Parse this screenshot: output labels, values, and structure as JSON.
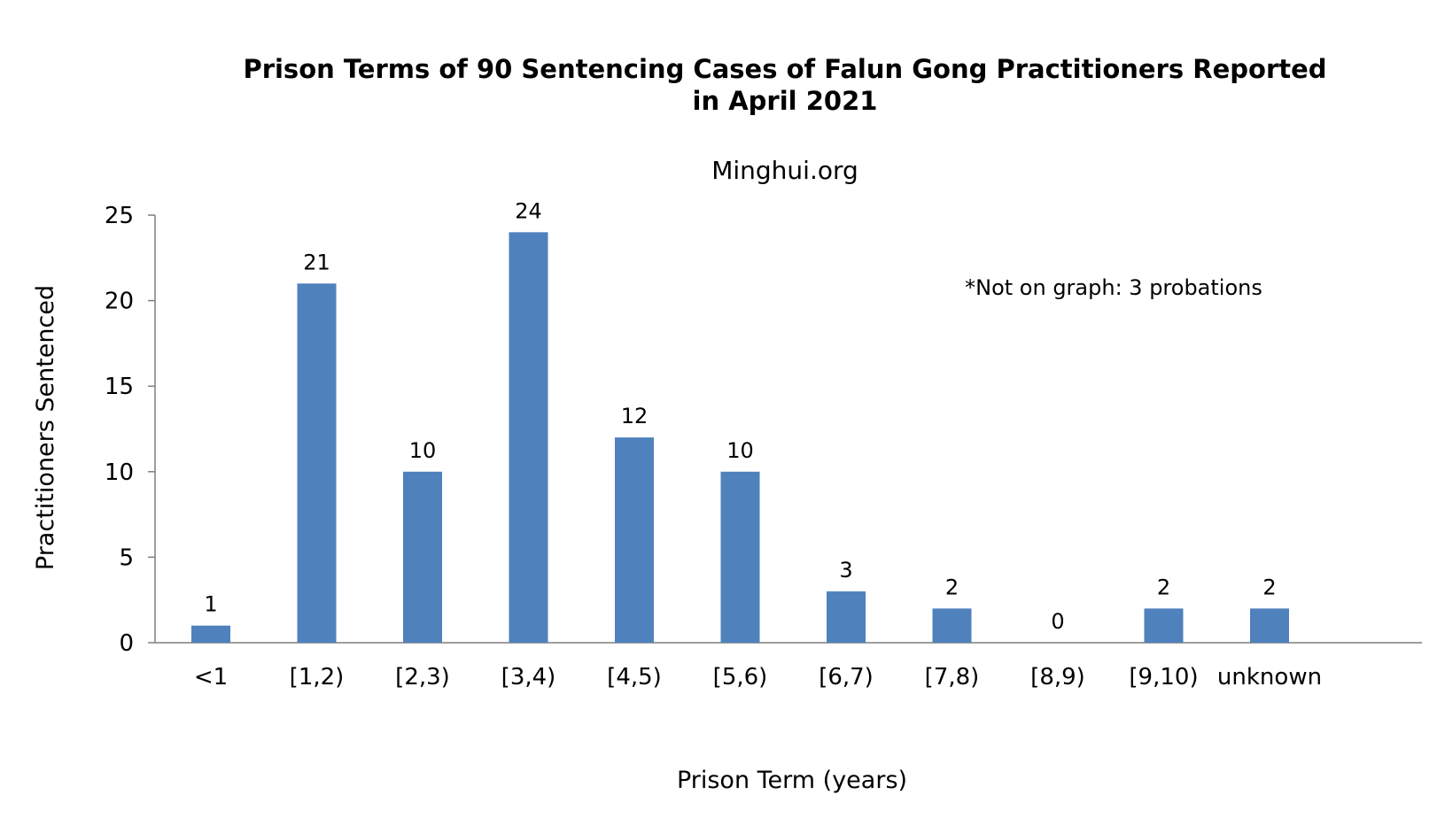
{
  "chart_data": {
    "type": "bar",
    "title": "Prison Terms of 90 Sentencing Cases of Falun Gong Practitioners Reported",
    "title_line2": "in April 2021",
    "subtitle": "Minghui.org",
    "note": "*Not on graph: 3 probations",
    "xlabel": "Prison Term (years)",
    "ylabel": "Practitioners Sentenced",
    "categories": [
      "<1",
      "[1,2)",
      "[2,3)",
      "[3,4)",
      "[4,5)",
      "[5,6)",
      "[6,7)",
      "[7,8)",
      "[8,9)",
      "[9,10)",
      "unknown"
    ],
    "values": [
      1,
      21,
      10,
      24,
      12,
      10,
      3,
      2,
      0,
      2,
      2
    ],
    "data_labels": [
      "1",
      "21",
      "10",
      "24",
      "12",
      "10",
      "3",
      "2",
      "0",
      "2",
      "2"
    ],
    "yticks": [
      "0",
      "5",
      "10",
      "15",
      "20",
      "25"
    ],
    "ylim": [
      0,
      25
    ],
    "grid": false,
    "legend": "none",
    "bar_color": "#4f81bd",
    "axis_color": "#7f7f7f"
  }
}
